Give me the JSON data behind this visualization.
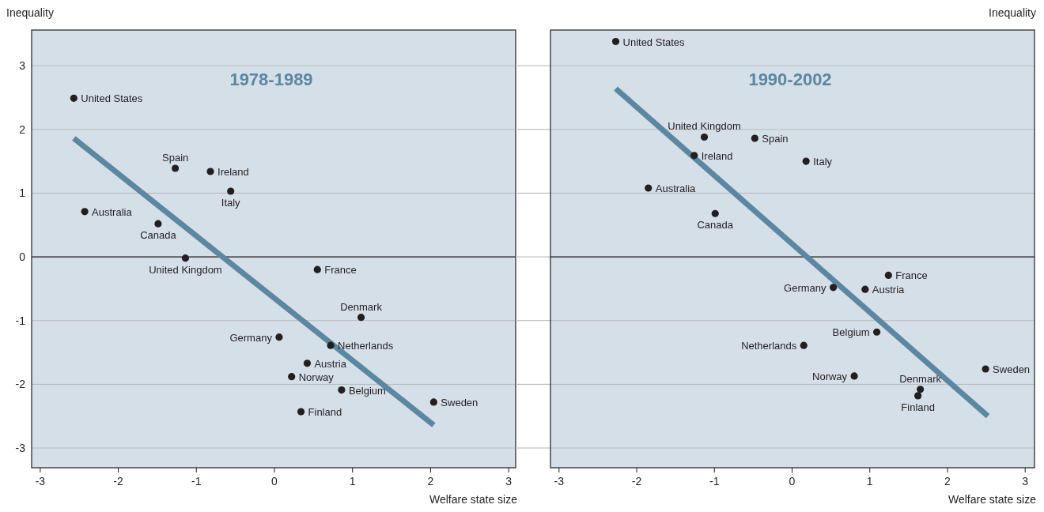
{
  "chart_data": [
    {
      "type": "scatter",
      "title": "1978-1989",
      "xlabel": "Welfare state size",
      "ylabel": "Inequality",
      "xlim": [
        -3.11,
        3.09
      ],
      "ylim": [
        -3.31,
        3.56
      ],
      "xticks": [
        -3,
        -2,
        -1,
        0,
        1,
        2,
        3
      ],
      "yticks": [
        -3,
        -2,
        -1,
        0,
        1,
        2,
        3
      ],
      "grid": "y",
      "ref_lines": [
        {
          "axis": "y",
          "value": 0,
          "color": "#231f20"
        }
      ],
      "series": [
        {
          "color": "#231f20",
          "marker": "circle",
          "x": [
            -2.57,
            -1.27,
            -0.82,
            -0.56,
            -2.43,
            -1.49,
            -1.14,
            0.55,
            1.11,
            0.06,
            0.72,
            0.42,
            0.22,
            0.86,
            2.04,
            0.34
          ],
          "values": [
            2.49,
            1.39,
            1.34,
            1.03,
            0.71,
            0.52,
            -0.02,
            -0.2,
            -0.95,
            -1.26,
            -1.39,
            -1.67,
            -1.88,
            -2.09,
            -2.28,
            -2.43
          ]
        },
        {
          "type": "line",
          "marker": "none",
          "color": "#5b87a3",
          "x": [
            -2.57,
            2.04
          ],
          "values": [
            1.86,
            -2.64
          ]
        }
      ],
      "annotations": [
        {
          "text": "United States",
          "x": -2.57,
          "y": 2.49
        },
        {
          "text": "Spain",
          "x": -1.27,
          "y": 1.39
        },
        {
          "text": "Ireland",
          "x": -0.82,
          "y": 1.34
        },
        {
          "text": "Italy",
          "x": -0.56,
          "y": 1.03
        },
        {
          "text": "Australia",
          "x": -2.43,
          "y": 0.71
        },
        {
          "text": "Canada",
          "x": -1.49,
          "y": 0.52
        },
        {
          "text": "United Kingdom",
          "x": -1.14,
          "y": -0.02
        },
        {
          "text": "France",
          "x": 0.55,
          "y": -0.2
        },
        {
          "text": "Denmark",
          "x": 1.11,
          "y": -0.95
        },
        {
          "text": "Germany",
          "x": 0.06,
          "y": -1.26
        },
        {
          "text": "Netherlands",
          "x": 0.72,
          "y": -1.39
        },
        {
          "text": "Austria",
          "x": 0.42,
          "y": -1.67
        },
        {
          "text": "Norway",
          "x": 0.22,
          "y": -1.88
        },
        {
          "text": "Belgium",
          "x": 0.86,
          "y": -2.09
        },
        {
          "text": "Sweden",
          "x": 2.04,
          "y": -2.28
        },
        {
          "text": "Finland",
          "x": 0.34,
          "y": -2.43
        }
      ]
    },
    {
      "type": "scatter",
      "title": "1990-2002",
      "xlabel": "Welfare state size",
      "ylabel": "Inequality",
      "xlim": [
        -3.11,
        3.12
      ],
      "ylim": [
        -3.31,
        3.56
      ],
      "xticks": [
        -3,
        -2,
        -1,
        0,
        1,
        2,
        3
      ],
      "yticks": [
        -3,
        -2,
        -1,
        0,
        1,
        2,
        3
      ],
      "tick_labels": "x",
      "grid": "y",
      "ref_lines": [
        {
          "axis": "y",
          "value": 0,
          "color": "#231f20"
        }
      ],
      "series": [
        {
          "color": "#231f20",
          "marker": "circle",
          "x": [
            -2.27,
            -1.13,
            -0.48,
            -1.26,
            0.18,
            -1.85,
            -0.99,
            1.24,
            0.53,
            0.94,
            1.09,
            0.15,
            0.8,
            2.49,
            1.65,
            1.62
          ],
          "values": [
            3.38,
            1.88,
            1.86,
            1.59,
            1.5,
            1.08,
            0.68,
            -0.29,
            -0.48,
            -0.51,
            -1.18,
            -1.39,
            -1.87,
            -1.76,
            -2.08,
            -2.18
          ]
        },
        {
          "type": "line",
          "marker": "none",
          "color": "#5b87a3",
          "x": [
            -2.27,
            2.52
          ],
          "values": [
            2.64,
            -2.5
          ]
        }
      ],
      "annotations": [
        {
          "text": "United States",
          "x": -2.27,
          "y": 3.38
        },
        {
          "text": "United Kingdom",
          "x": -1.13,
          "y": 1.88
        },
        {
          "text": "Spain",
          "x": -0.48,
          "y": 1.86
        },
        {
          "text": "Ireland",
          "x": -1.26,
          "y": 1.59
        },
        {
          "text": "Italy",
          "x": 0.18,
          "y": 1.5
        },
        {
          "text": "Australia",
          "x": -1.85,
          "y": 1.08
        },
        {
          "text": "Canada",
          "x": -0.99,
          "y": 0.68
        },
        {
          "text": "France",
          "x": 1.24,
          "y": -0.29
        },
        {
          "text": "Germany",
          "x": 0.53,
          "y": -0.48
        },
        {
          "text": "Austria",
          "x": 0.94,
          "y": -0.51
        },
        {
          "text": "Belgium",
          "x": 1.09,
          "y": -1.18
        },
        {
          "text": "Netherlands",
          "x": 0.15,
          "y": -1.39
        },
        {
          "text": "Norway",
          "x": 0.8,
          "y": -1.87
        },
        {
          "text": "Sweden",
          "x": 2.49,
          "y": -1.76
        },
        {
          "text": "Denmark",
          "x": 1.65,
          "y": -2.08
        },
        {
          "text": "Finland",
          "x": 1.62,
          "y": -2.18
        }
      ]
    }
  ]
}
